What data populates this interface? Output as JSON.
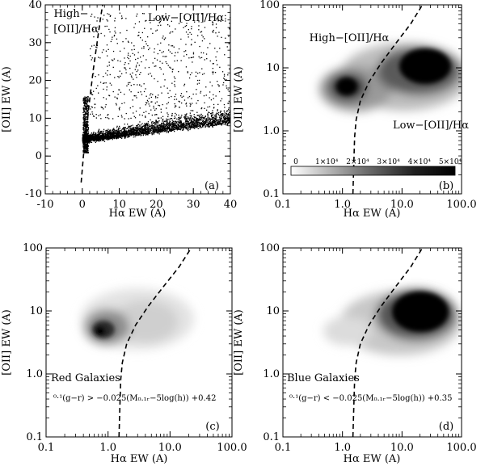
{
  "chart_data": [
    {
      "id": "a",
      "type": "scatter",
      "panel_label": "(a)",
      "xlabel": "Hα EW (A)",
      "ylabel": "[OII] EW (A)",
      "xlim": [
        -10,
        40
      ],
      "ylim": [
        -10,
        40
      ],
      "xscale": "linear",
      "yscale": "linear",
      "xticks": [
        "-10",
        "0",
        "10",
        "20",
        "30",
        "40"
      ],
      "yticks": [
        "-10",
        "0",
        "10",
        "20",
        "30",
        "40"
      ],
      "annotations": [
        "High−",
        "[OII]/Hα",
        "Low−[OII]/Hα"
      ],
      "divider_curve": [
        [
          -0.3,
          -7
        ],
        [
          0.3,
          0
        ],
        [
          1.2,
          8
        ],
        [
          2.0,
          15
        ],
        [
          3.0,
          23
        ],
        [
          4.0,
          30
        ],
        [
          5.0,
          37
        ],
        [
          5.5,
          40
        ]
      ],
      "point_cloud": {
        "x_range": [
          0,
          40
        ],
        "y_range": [
          1,
          38
        ],
        "dense_core": [
          [
            0.5,
            12
          ],
          [
            2,
            10
          ],
          [
            10,
            6
          ],
          [
            25,
            8
          ]
        ]
      }
    },
    {
      "id": "b",
      "type": "heatmap",
      "panel_label": "(b)",
      "xlabel": "Hα EW (A)",
      "ylabel": "[OII] EW (A)",
      "xlim": [
        0.1,
        100.0
      ],
      "ylim": [
        0.1,
        100
      ],
      "xscale": "log",
      "yscale": "log",
      "xticks": [
        "0.1",
        "1.0",
        "10.0",
        "100.0"
      ],
      "yticks": [
        "0.1",
        "1.0",
        "10",
        "100"
      ],
      "annotations": [
        "High−[OII]/Hα",
        "Low−[OII]/Hα"
      ],
      "colorbar": {
        "tick_labels": [
          "0",
          "1×10⁴",
          "2×10⁴",
          "3×10⁴",
          "4×10⁴",
          "5×10⁴"
        ],
        "range": [
          0,
          50000
        ]
      },
      "density_peaks": [
        {
          "x": 1.1,
          "y": 4.5,
          "level": 0.9
        },
        {
          "x": 20,
          "y": 10,
          "level": 1.0
        }
      ],
      "divider_curve": [
        [
          1.5,
          0.1
        ],
        [
          1.55,
          0.3
        ],
        [
          1.6,
          0.8
        ],
        [
          1.7,
          1.5
        ],
        [
          2.0,
          3
        ],
        [
          2.8,
          6
        ],
        [
          4.5,
          12
        ],
        [
          8,
          25
        ],
        [
          14,
          50
        ],
        [
          22,
          100
        ]
      ]
    },
    {
      "id": "c",
      "type": "heatmap",
      "panel_label": "(c)",
      "xlabel": "Hα EW (A)",
      "ylabel": "[OII] EW (A)",
      "xlim": [
        0.1,
        100.0
      ],
      "ylim": [
        0.1,
        100
      ],
      "xscale": "log",
      "yscale": "log",
      "xticks": [
        "0.1",
        "1.0",
        "10.0",
        "100.0"
      ],
      "yticks": [
        "0.1",
        "1.0",
        "10",
        "100"
      ],
      "annotations": [
        "Red Galaxies"
      ],
      "selection": "⁰·¹(g−r) > −0.025(M₀.₁ᵣ−5log(h)) +0.42",
      "density_peaks": [
        {
          "x": 1.0,
          "y": 4.5,
          "level": 0.85
        },
        {
          "x": 3.5,
          "y": 7,
          "level": 0.3
        }
      ],
      "divider_curve": [
        [
          1.5,
          0.1
        ],
        [
          1.55,
          0.3
        ],
        [
          1.6,
          0.8
        ],
        [
          1.7,
          1.5
        ],
        [
          2.0,
          3
        ],
        [
          2.8,
          6
        ],
        [
          4.5,
          12
        ],
        [
          8,
          25
        ],
        [
          14,
          50
        ],
        [
          22,
          100
        ]
      ]
    },
    {
      "id": "d",
      "type": "heatmap",
      "panel_label": "(d)",
      "xlabel": "Hα EW (A)",
      "ylabel": "[OII] EW (A)",
      "xlim": [
        0.1,
        100.0
      ],
      "ylim": [
        0.1,
        100
      ],
      "xscale": "log",
      "yscale": "log",
      "xticks": [
        "0.1",
        "1.0",
        "10.0",
        "100.0"
      ],
      "yticks": [
        "0.1",
        "1.0",
        "10",
        "100"
      ],
      "annotations": [
        "Blue Galaxies"
      ],
      "selection": "⁰·¹(g−r) < −0.025(M₀.₁ᵣ−5log(h)) +0.35",
      "density_peaks": [
        {
          "x": 22,
          "y": 10,
          "level": 1.0
        },
        {
          "x": 2,
          "y": 5,
          "level": 0.2
        }
      ],
      "divider_curve": [
        [
          1.5,
          0.1
        ],
        [
          1.55,
          0.3
        ],
        [
          1.6,
          0.8
        ],
        [
          1.7,
          1.5
        ],
        [
          2.0,
          3
        ],
        [
          2.8,
          6
        ],
        [
          4.5,
          12
        ],
        [
          8,
          25
        ],
        [
          14,
          50
        ],
        [
          22,
          100
        ]
      ]
    }
  ]
}
